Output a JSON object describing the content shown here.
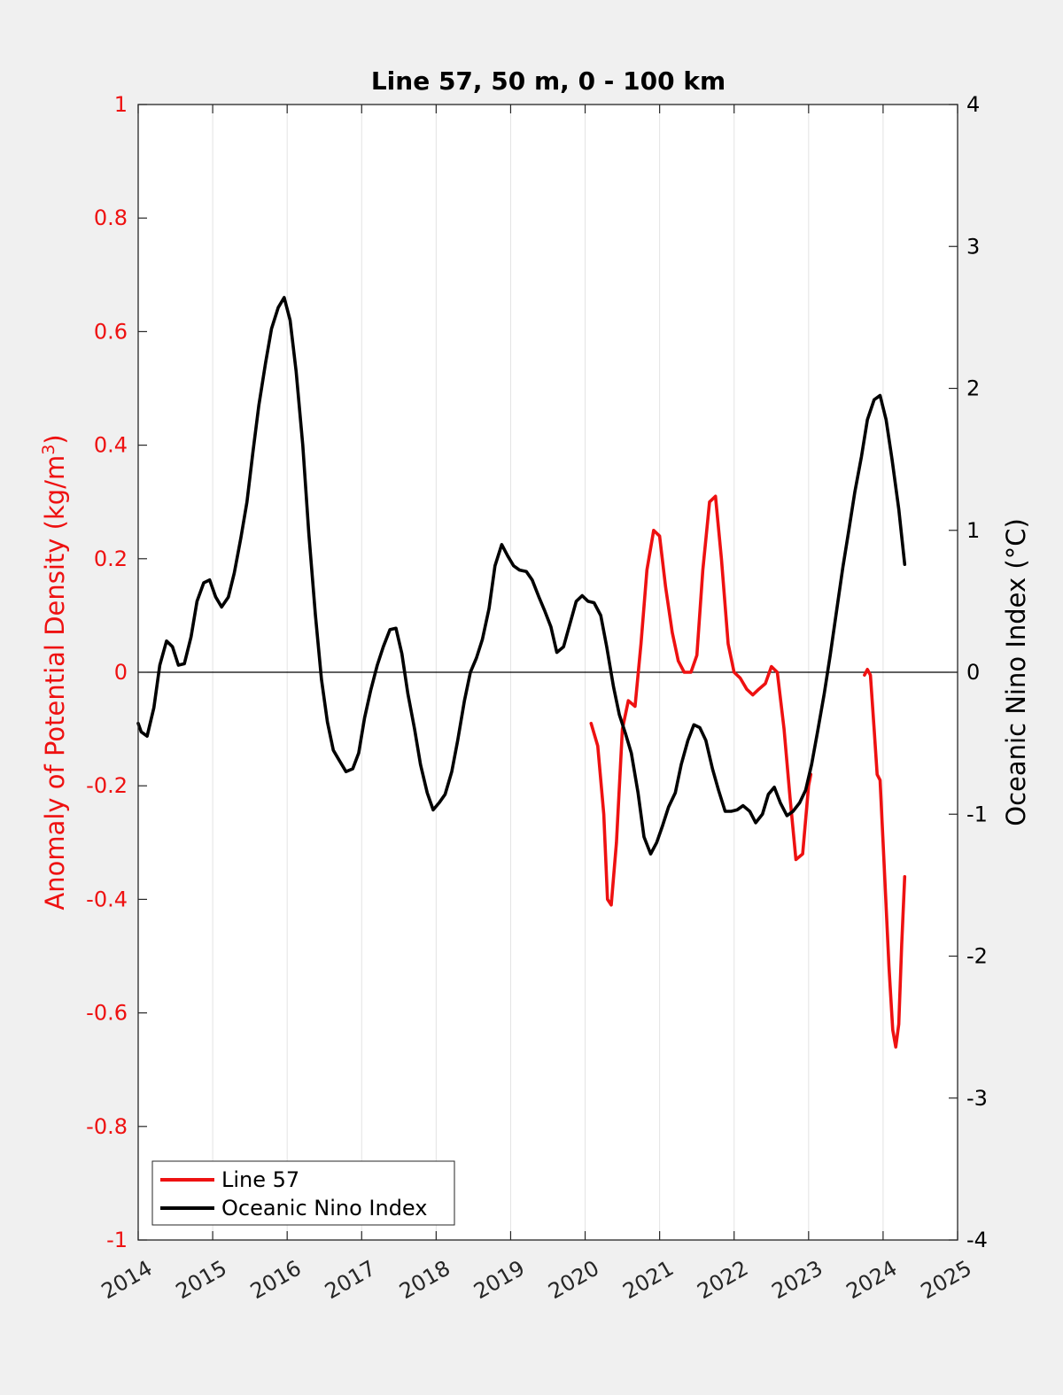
{
  "chart_data": {
    "type": "line",
    "title": "Line 57, 50 m, 0 - 100 km",
    "ylabel_left": {
      "text": "Anomaly of Potential Density (kg/m",
      "sup": "3",
      "suffix": ")"
    },
    "ylabel_right": "Oceanic Nino Index (°C)",
    "xlim": [
      2014,
      2025
    ],
    "ylim_left": [
      -1,
      1
    ],
    "ylim_right": [
      -4,
      4
    ],
    "x_ticks": [
      "2014",
      "2015",
      "2016",
      "2017",
      "2018",
      "2019",
      "2020",
      "2021",
      "2022",
      "2023",
      "2024",
      "2025"
    ],
    "y_ticks_left": [
      "-1",
      "-0.8",
      "-0.6",
      "-0.4",
      "-0.2",
      "0",
      "0.2",
      "0.4",
      "0.6",
      "0.8",
      "1"
    ],
    "y_ticks_right": [
      "-4",
      "-3",
      "-2",
      "-1",
      "0",
      "1",
      "2",
      "3",
      "4"
    ],
    "grid": "vertical",
    "legend_position": "bottom-left",
    "colors": {
      "line57": "#ee1111",
      "oni": "#000000",
      "left_axis": "#ee1111",
      "right_axis": "#000000"
    },
    "series": [
      {
        "name": "Line 57",
        "axis": "left",
        "color": "#ee1111",
        "segments": [
          [
            [
              2020.08,
              -0.09
            ],
            [
              2020.17,
              -0.13
            ],
            [
              2020.25,
              -0.25
            ],
            [
              2020.3,
              -0.4
            ],
            [
              2020.35,
              -0.41
            ],
            [
              2020.42,
              -0.3
            ],
            [
              2020.5,
              -0.1
            ],
            [
              2020.58,
              -0.05
            ],
            [
              2020.67,
              -0.06
            ],
            [
              2020.75,
              0.05
            ],
            [
              2020.83,
              0.18
            ],
            [
              2020.92,
              0.25
            ],
            [
              2021.0,
              0.24
            ],
            [
              2021.08,
              0.15
            ],
            [
              2021.17,
              0.07
            ],
            [
              2021.25,
              0.02
            ],
            [
              2021.33,
              0.0
            ],
            [
              2021.42,
              0.0
            ],
            [
              2021.5,
              0.03
            ],
            [
              2021.58,
              0.18
            ],
            [
              2021.67,
              0.3
            ],
            [
              2021.75,
              0.31
            ],
            [
              2021.83,
              0.2
            ],
            [
              2021.92,
              0.05
            ],
            [
              2022.0,
              0.0
            ],
            [
              2022.08,
              -0.01
            ],
            [
              2022.17,
              -0.03
            ],
            [
              2022.25,
              -0.04
            ],
            [
              2022.33,
              -0.03
            ],
            [
              2022.42,
              -0.02
            ],
            [
              2022.5,
              0.01
            ],
            [
              2022.58,
              0.0
            ],
            [
              2022.67,
              -0.1
            ],
            [
              2022.75,
              -0.22
            ],
            [
              2022.83,
              -0.33
            ],
            [
              2022.92,
              -0.32
            ],
            [
              2023.0,
              -0.2
            ],
            [
              2023.03,
              -0.18
            ]
          ],
          [
            [
              2023.75,
              -0.005
            ],
            [
              2023.79,
              0.005
            ],
            [
              2023.83,
              -0.005
            ],
            [
              2023.88,
              -0.1
            ],
            [
              2023.92,
              -0.18
            ],
            [
              2023.96,
              -0.19
            ],
            [
              2024.0,
              -0.3
            ],
            [
              2024.08,
              -0.52
            ],
            [
              2024.13,
              -0.63
            ],
            [
              2024.17,
              -0.66
            ],
            [
              2024.21,
              -0.62
            ],
            [
              2024.25,
              -0.48
            ],
            [
              2024.29,
              -0.36
            ]
          ]
        ]
      },
      {
        "name": "Oceanic Nino Index",
        "axis": "right",
        "color": "#000000",
        "segments": [
          [
            [
              2014.0,
              -0.36
            ],
            [
              2014.04,
              -0.42
            ],
            [
              2014.12,
              -0.45
            ],
            [
              2014.21,
              -0.25
            ],
            [
              2014.29,
              0.05
            ],
            [
              2014.38,
              0.22
            ],
            [
              2014.46,
              0.18
            ],
            [
              2014.54,
              0.05
            ],
            [
              2014.62,
              0.06
            ],
            [
              2014.71,
              0.25
            ],
            [
              2014.79,
              0.5
            ],
            [
              2014.88,
              0.63
            ],
            [
              2014.96,
              0.65
            ],
            [
              2015.04,
              0.53
            ],
            [
              2015.12,
              0.46
            ],
            [
              2015.21,
              0.53
            ],
            [
              2015.29,
              0.7
            ],
            [
              2015.38,
              0.95
            ],
            [
              2015.46,
              1.2
            ],
            [
              2015.54,
              1.55
            ],
            [
              2015.62,
              1.88
            ],
            [
              2015.71,
              2.18
            ],
            [
              2015.79,
              2.42
            ],
            [
              2015.88,
              2.57
            ],
            [
              2015.96,
              2.64
            ],
            [
              2016.04,
              2.48
            ],
            [
              2016.12,
              2.12
            ],
            [
              2016.21,
              1.6
            ],
            [
              2016.29,
              0.98
            ],
            [
              2016.38,
              0.4
            ],
            [
              2016.46,
              -0.05
            ],
            [
              2016.54,
              -0.35
            ],
            [
              2016.62,
              -0.55
            ],
            [
              2016.71,
              -0.63
            ],
            [
              2016.79,
              -0.7
            ],
            [
              2016.88,
              -0.68
            ],
            [
              2016.96,
              -0.57
            ],
            [
              2017.04,
              -0.32
            ],
            [
              2017.12,
              -0.13
            ],
            [
              2017.21,
              0.05
            ],
            [
              2017.29,
              0.18
            ],
            [
              2017.38,
              0.3
            ],
            [
              2017.46,
              0.31
            ],
            [
              2017.54,
              0.13
            ],
            [
              2017.62,
              -0.15
            ],
            [
              2017.71,
              -0.4
            ],
            [
              2017.79,
              -0.65
            ],
            [
              2017.88,
              -0.85
            ],
            [
              2017.96,
              -0.97
            ],
            [
              2018.04,
              -0.92
            ],
            [
              2018.12,
              -0.86
            ],
            [
              2018.21,
              -0.7
            ],
            [
              2018.29,
              -0.48
            ],
            [
              2018.38,
              -0.2
            ],
            [
              2018.46,
              0.0
            ],
            [
              2018.54,
              0.1
            ],
            [
              2018.62,
              0.23
            ],
            [
              2018.71,
              0.45
            ],
            [
              2018.79,
              0.75
            ],
            [
              2018.88,
              0.9
            ],
            [
              2018.96,
              0.82
            ],
            [
              2019.04,
              0.75
            ],
            [
              2019.12,
              0.72
            ],
            [
              2019.21,
              0.71
            ],
            [
              2019.29,
              0.65
            ],
            [
              2019.38,
              0.53
            ],
            [
              2019.46,
              0.43
            ],
            [
              2019.54,
              0.32
            ],
            [
              2019.62,
              0.14
            ],
            [
              2019.71,
              0.18
            ],
            [
              2019.79,
              0.33
            ],
            [
              2019.88,
              0.5
            ],
            [
              2019.96,
              0.54
            ],
            [
              2020.04,
              0.5
            ],
            [
              2020.12,
              0.49
            ],
            [
              2020.21,
              0.4
            ],
            [
              2020.29,
              0.18
            ],
            [
              2020.38,
              -0.1
            ],
            [
              2020.46,
              -0.3
            ],
            [
              2020.54,
              -0.43
            ],
            [
              2020.62,
              -0.57
            ],
            [
              2020.71,
              -0.85
            ],
            [
              2020.79,
              -1.16
            ],
            [
              2020.88,
              -1.28
            ],
            [
              2020.96,
              -1.2
            ],
            [
              2021.04,
              -1.08
            ],
            [
              2021.12,
              -0.95
            ],
            [
              2021.21,
              -0.85
            ],
            [
              2021.29,
              -0.65
            ],
            [
              2021.38,
              -0.48
            ],
            [
              2021.46,
              -0.37
            ],
            [
              2021.54,
              -0.39
            ],
            [
              2021.62,
              -0.48
            ],
            [
              2021.71,
              -0.68
            ],
            [
              2021.79,
              -0.83
            ],
            [
              2021.88,
              -0.98
            ],
            [
              2021.96,
              -0.98
            ],
            [
              2022.04,
              -0.97
            ],
            [
              2022.12,
              -0.94
            ],
            [
              2022.21,
              -0.98
            ],
            [
              2022.29,
              -1.06
            ],
            [
              2022.38,
              -1.0
            ],
            [
              2022.46,
              -0.86
            ],
            [
              2022.54,
              -0.81
            ],
            [
              2022.62,
              -0.92
            ],
            [
              2022.71,
              -1.01
            ],
            [
              2022.79,
              -0.98
            ],
            [
              2022.88,
              -0.92
            ],
            [
              2022.96,
              -0.83
            ],
            [
              2023.04,
              -0.65
            ],
            [
              2023.12,
              -0.42
            ],
            [
              2023.21,
              -0.15
            ],
            [
              2023.29,
              0.12
            ],
            [
              2023.38,
              0.45
            ],
            [
              2023.46,
              0.74
            ],
            [
              2023.54,
              1.0
            ],
            [
              2023.62,
              1.27
            ],
            [
              2023.71,
              1.52
            ],
            [
              2023.79,
              1.78
            ],
            [
              2023.88,
              1.92
            ],
            [
              2023.96,
              1.95
            ],
            [
              2024.04,
              1.78
            ],
            [
              2024.12,
              1.5
            ],
            [
              2024.21,
              1.15
            ],
            [
              2024.29,
              0.76
            ]
          ]
        ]
      }
    ]
  }
}
